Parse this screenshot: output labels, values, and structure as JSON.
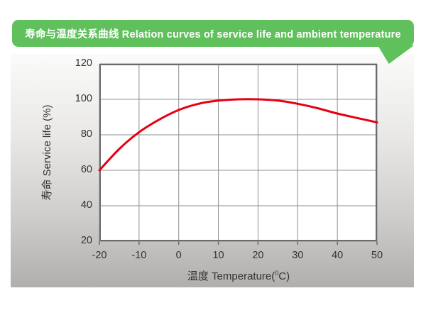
{
  "header": {
    "title": "寿命与温度关系曲线 Relation curves of service life and ambient temperature",
    "banner_color": "#5fc05c",
    "text_color": "#ffffff"
  },
  "chart_data": {
    "type": "line",
    "title": "寿命与温度关系曲线 Relation curves of service life and ambient temperature",
    "x": [
      -20,
      -15,
      -10,
      -5,
      0,
      5,
      10,
      15,
      20,
      25,
      30,
      35,
      40,
      45,
      50
    ],
    "series": [
      {
        "name": "service-life-curve",
        "color": "#e60012",
        "values": [
          60,
          72,
          81.5,
          88.5,
          94,
          97.5,
          99.3,
          100,
          100,
          99.3,
          97.5,
          95,
          92,
          89.5,
          87
        ]
      }
    ],
    "xlabel": {
      "prefix": "温度 Temperature(",
      "sup": "0",
      "suffix": "C)"
    },
    "ylabel": "寿命 Service life (%)",
    "x_ticks": [
      -20,
      -10,
      0,
      10,
      20,
      30,
      40,
      50
    ],
    "y_ticks": [
      20,
      40,
      60,
      80,
      100,
      120
    ],
    "xlim": [
      -20,
      50
    ],
    "ylim": [
      20,
      120
    ],
    "grid": true,
    "legend": "none",
    "colors": {
      "plot_bg": "#ffffff",
      "grid": "#8f8f8f",
      "axis": "#6b6b6b",
      "tick_text": "#333333"
    }
  }
}
